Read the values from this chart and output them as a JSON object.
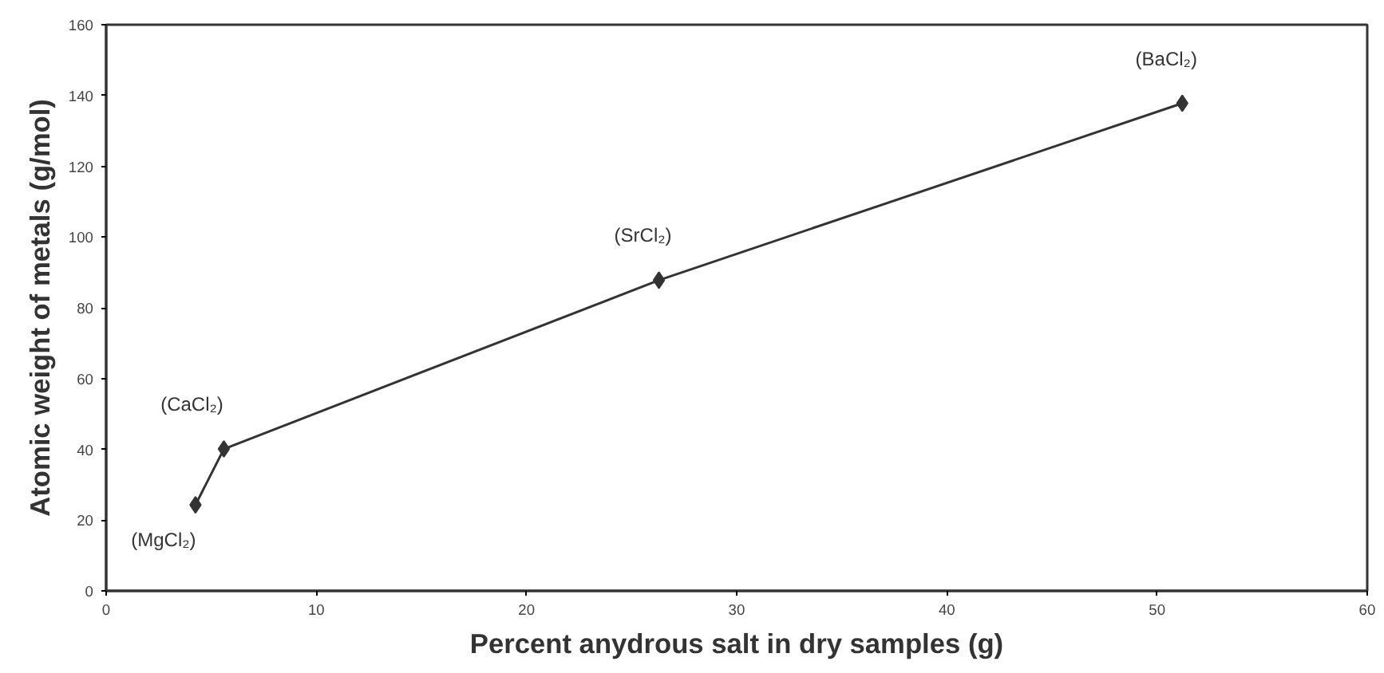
{
  "chart_data": {
    "type": "line",
    "xlabel": "Percent anydrous salt in dry samples (g)",
    "ylabel": "Atomic weight of metals (g/mol)",
    "x": [
      4.25,
      5.6,
      26.3,
      51.2
    ],
    "series": [
      {
        "color": "#333333",
        "values": [
          24.3,
          40.1,
          87.8,
          137.8
        ]
      }
    ],
    "marker": "diamond",
    "line_style": "solid",
    "grid": false,
    "xlim": [
      0,
      60
    ],
    "xticks": [
      0,
      10,
      20,
      30,
      40,
      50,
      60
    ],
    "ylim": [
      0,
      160
    ],
    "yticks": [
      0,
      20,
      40,
      60,
      80,
      100,
      120,
      140,
      160
    ],
    "annotations": [
      {
        "text": "(MgCl₂)",
        "x": 4.25,
        "y": 24.3
      },
      {
        "text": "(CaCl₂)",
        "x": 5.6,
        "y": 40.1
      },
      {
        "text": "(SrCl₂)",
        "x": 26.3,
        "y": 87.8
      },
      {
        "text": "(BaCl₂)",
        "x": 51.2,
        "y": 137.8
      }
    ]
  }
}
